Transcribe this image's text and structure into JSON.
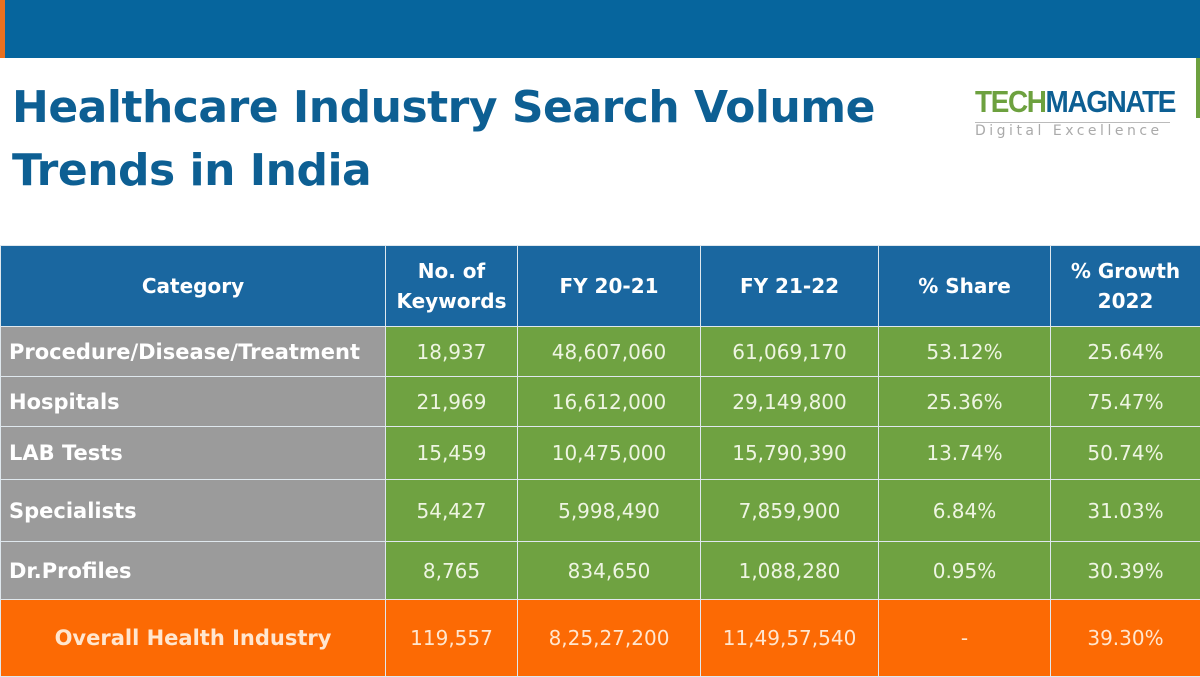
{
  "title_line1": "Healthcare Industry Search Volume",
  "title_line2": "Trends in India",
  "logo": {
    "tech": "TECH",
    "magnate": "MAGNATE",
    "tagline": "Digital Excellence"
  },
  "colors": {
    "header_bar": "#06659d",
    "title": "#0d5f93",
    "table_header": "#1a67a0",
    "category_cell": "#9b9b9b",
    "data_cell": "#6fa241",
    "total_row": "#fc6a04"
  },
  "table": {
    "headers": [
      "Category",
      "No. of Keywords",
      "FY 20-21",
      "FY 21-22",
      "% Share",
      "% Growth 2022"
    ],
    "rows": [
      [
        "Procedure/Disease/Treatment",
        "18,937",
        "48,607,060",
        "61,069,170",
        "53.12%",
        "25.64%"
      ],
      [
        "Hospitals",
        "21,969",
        "16,612,000",
        "29,149,800",
        "25.36%",
        "75.47%"
      ],
      [
        "LAB Tests",
        "15,459",
        "10,475,000",
        "15,790,390",
        "13.74%",
        "50.74%"
      ],
      [
        "Specialists",
        "54,427",
        "5,998,490",
        "7,859,900",
        "6.84%",
        "31.03%"
      ],
      [
        "Dr.Profiles",
        "8,765",
        "834,650",
        "1,088,280",
        "0.95%",
        "30.39%"
      ]
    ],
    "total": [
      "Overall Health Industry",
      "119,557",
      "8,25,27,200",
      "11,49,57,540",
      "-",
      "39.30%"
    ]
  }
}
